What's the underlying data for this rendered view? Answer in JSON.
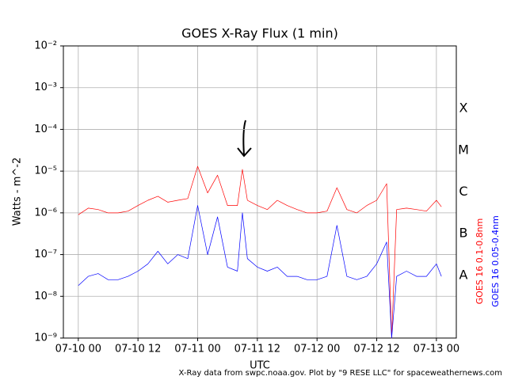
{
  "chart_data": {
    "type": "line",
    "title": "GOES X-Ray Flux (1 min)",
    "x_label": "UTC",
    "y_label": "Watts - m^-2",
    "source_note": "X-Ray data from swpc.noaa.gov. Plot by \"9 RESE LLC\" for spaceweathernews.com",
    "log_y": true,
    "grid": true,
    "xlim": [
      "07-09 21",
      "07-13 04"
    ],
    "xticks": [
      "07-10 00",
      "07-10 12",
      "07-11 00",
      "07-11 12",
      "07-12 00",
      "07-12 12",
      "07-13 00"
    ],
    "ylim": [
      1e-09,
      0.01
    ],
    "yticks": [
      {
        "value": 1e-09,
        "label": "10⁻⁹"
      },
      {
        "value": 1e-08,
        "label": "10⁻⁸"
      },
      {
        "value": 1e-07,
        "label": "10⁻⁷"
      },
      {
        "value": 1e-06,
        "label": "10⁻⁶"
      },
      {
        "value": 1e-05,
        "label": "10⁻⁵"
      },
      {
        "value": 0.0001,
        "label": "10⁻⁴"
      },
      {
        "value": 0.001,
        "label": "10⁻³"
      },
      {
        "value": 0.01,
        "label": "10⁻²"
      }
    ],
    "flare_classes": [
      {
        "label": "A",
        "value": 1e-08
      },
      {
        "label": "B",
        "value": 1e-07
      },
      {
        "label": "C",
        "value": 1e-06
      },
      {
        "label": "M",
        "value": 1e-05
      },
      {
        "label": "X",
        "value": 0.0001
      }
    ],
    "x": [
      "07-10 00",
      "07-10 02",
      "07-10 04",
      "07-10 06",
      "07-10 08",
      "07-10 10",
      "07-10 12",
      "07-10 14",
      "07-10 16",
      "07-10 18",
      "07-10 20",
      "07-10 22",
      "07-11 00",
      "07-11 02",
      "07-11 04",
      "07-11 06",
      "07-11 08",
      "07-11 09",
      "07-11 10",
      "07-11 12",
      "07-11 14",
      "07-11 16",
      "07-11 18",
      "07-11 20",
      "07-11 22",
      "07-12 00",
      "07-12 02",
      "07-12 04",
      "07-12 06",
      "07-12 08",
      "07-12 10",
      "07-12 12",
      "07-12 14",
      "07-12 15",
      "07-12 16",
      "07-12 18",
      "07-12 20",
      "07-12 22",
      "07-13 00",
      "07-13 01"
    ],
    "series": [
      {
        "name": "GOES 16 0.1-0.8nm",
        "color": "#ff0000",
        "values": [
          9e-07,
          1.3e-06,
          1.2e-06,
          1e-06,
          1e-06,
          1.1e-06,
          1.5e-06,
          2e-06,
          2.5e-06,
          1.8e-06,
          2e-06,
          2.2e-06,
          1.3e-05,
          3e-06,
          8e-06,
          1.5e-06,
          1.5e-06,
          1.1e-05,
          2e-06,
          1.5e-06,
          1.2e-06,
          2e-06,
          1.5e-06,
          1.2e-06,
          1e-06,
          1e-06,
          1.1e-06,
          4e-06,
          1.2e-06,
          1e-06,
          1.5e-06,
          2e-06,
          5e-06,
          1e-09,
          1.2e-06,
          1.3e-06,
          1.2e-06,
          1.1e-06,
          2e-06,
          1.4e-06
        ]
      },
      {
        "name": "GOES 16 0.05-0.4nm",
        "color": "#0000ff",
        "values": [
          1.8e-08,
          3e-08,
          3.5e-08,
          2.5e-08,
          2.5e-08,
          3e-08,
          4e-08,
          6e-08,
          1.2e-07,
          6e-08,
          1e-07,
          8e-08,
          1.5e-06,
          1e-07,
          8e-07,
          5e-08,
          4e-08,
          1e-06,
          8e-08,
          5e-08,
          4e-08,
          5e-08,
          3e-08,
          3e-08,
          2.5e-08,
          2.5e-08,
          3e-08,
          5e-07,
          3e-08,
          2.5e-08,
          3e-08,
          6e-08,
          2e-07,
          1e-09,
          3e-08,
          4e-08,
          3e-08,
          3e-08,
          6e-08,
          3e-08
        ]
      }
    ]
  }
}
